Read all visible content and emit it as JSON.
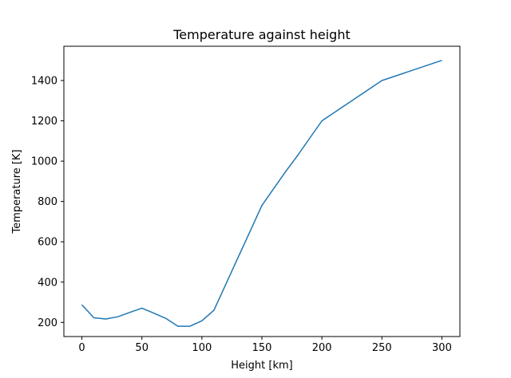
{
  "chart_data": {
    "type": "line",
    "title": "Temperature against height",
    "xlabel": "Height [km]",
    "ylabel": "Temperature [K]",
    "xlim": [
      -15,
      315
    ],
    "ylim": [
      130,
      1570
    ],
    "xticks": [
      0,
      50,
      100,
      150,
      200,
      250,
      300
    ],
    "yticks": [
      200,
      400,
      600,
      800,
      1000,
      1200,
      1400
    ],
    "grid": false,
    "series": [
      {
        "color": "#1f77b4",
        "x": [
          0,
          10,
          20,
          30,
          40,
          50,
          60,
          70,
          80,
          90,
          100,
          110,
          120,
          130,
          140,
          150,
          160,
          170,
          180,
          190,
          200,
          250,
          300
        ],
        "y": [
          288,
          223,
          217,
          228,
          250,
          271,
          246,
          220,
          181,
          181,
          208,
          260,
          390,
          520,
          650,
          780,
          865,
          950,
          1030,
          1115,
          1200,
          1400,
          1500
        ]
      }
    ]
  }
}
